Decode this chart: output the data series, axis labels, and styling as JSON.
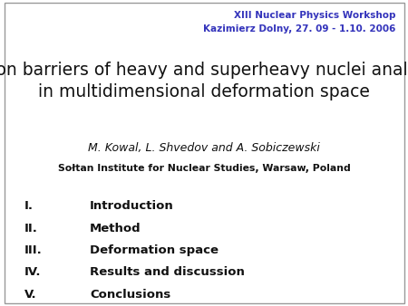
{
  "background_color": "#ffffff",
  "header_line1": "XIII Nuclear Physics Workshop",
  "header_line2": "Kazimierz Dolny, 27. 09 - 1.10. 2006",
  "header_color": "#3333bb",
  "header_fontsize": 7.5,
  "title_line1": "Fission barriers of heavy and superheavy nuclei analyzed",
  "title_line2": "in multidimensional deformation space",
  "title_fontsize": 13.5,
  "title_color": "#111111",
  "author": "M. Kowal, L. Shvedov and A. Sobiczewski",
  "author_fontsize": 9.0,
  "author_color": "#111111",
  "institute": "Sołtan Institute for Nuclear Studies, Warsaw, Poland",
  "institute_fontsize": 7.8,
  "institute_color": "#111111",
  "items": [
    [
      "I.",
      "Introduction"
    ],
    [
      "II.",
      "Method"
    ],
    [
      "III.",
      "Deformation space"
    ],
    [
      "IV.",
      "Results and discussion"
    ],
    [
      "V.",
      "Conclusions"
    ]
  ],
  "items_fontsize": 9.5,
  "items_color": "#111111",
  "border_color": "#999999",
  "border_linewidth": 1.0,
  "fig_width": 4.5,
  "fig_height": 3.38,
  "dpi": 100
}
